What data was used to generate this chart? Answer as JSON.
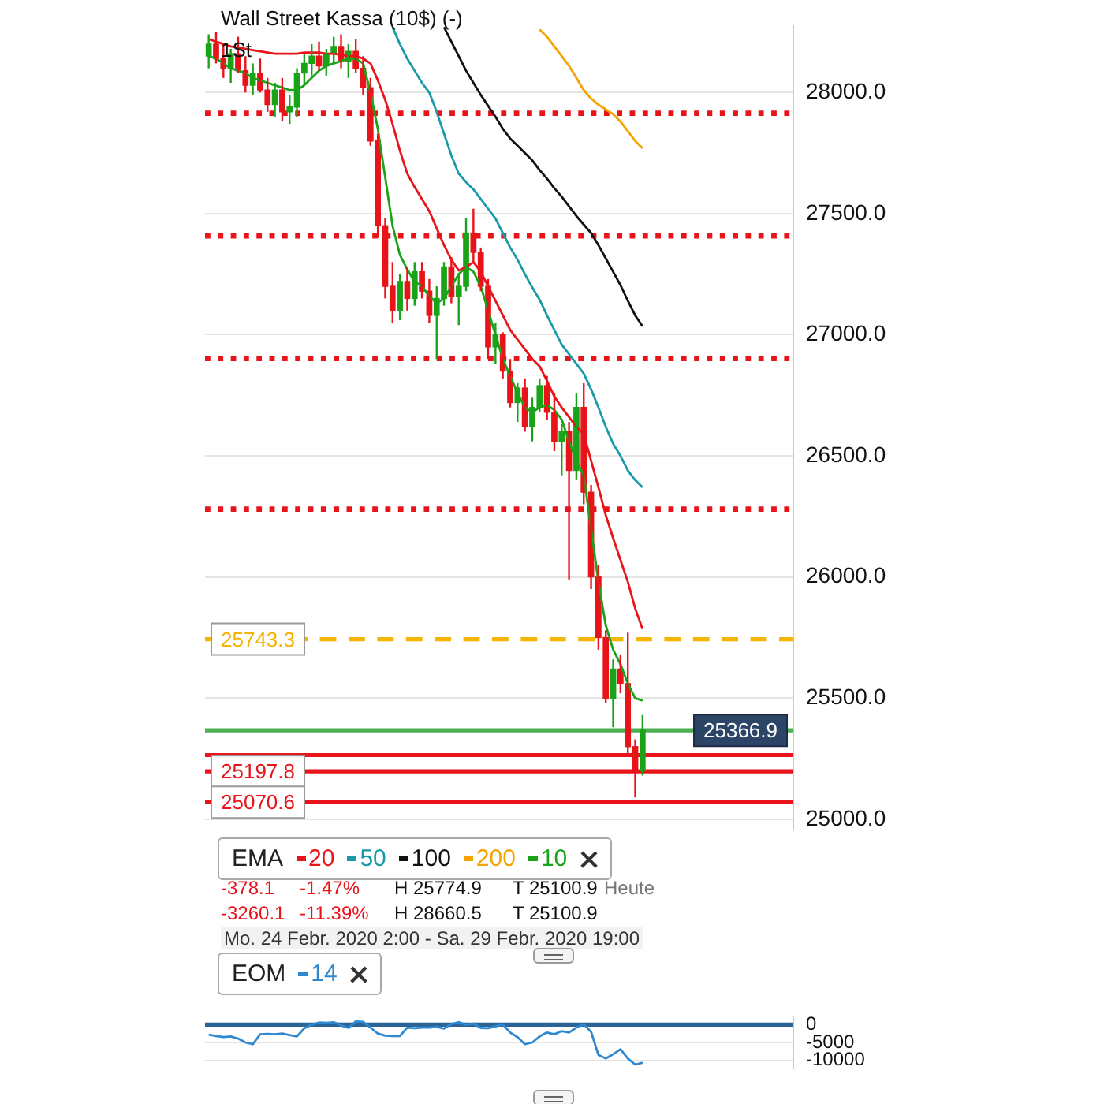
{
  "chart_data": [
    {
      "type": "candlestick",
      "title": "Wall Street Kassa (10$) (-)",
      "subtitle": "1St",
      "legend_title": "EMA",
      "legend": "bottom left",
      "grid": "y",
      "tick_labels": "y",
      "marker": "none",
      "categories": [
        null,
        null,
        null,
        null,
        null,
        null,
        null,
        null,
        null,
        null,
        null,
        null,
        null,
        null,
        null,
        null,
        null,
        null,
        null,
        null,
        null,
        null,
        null,
        null,
        null,
        null,
        null,
        null,
        null,
        null,
        null,
        null,
        null,
        null,
        null,
        null,
        null,
        null,
        null,
        null,
        null,
        null,
        null,
        null,
        null,
        null,
        null,
        null,
        null,
        null,
        null,
        null,
        null,
        null,
        null,
        null,
        null,
        null,
        null,
        null,
        null,
        null,
        null,
        null,
        null,
        null,
        null,
        null,
        null,
        null,
        null,
        null,
        null,
        null,
        null,
        null,
        null,
        null,
        null,
        null
      ],
      "ohlc": [
        [
          28150,
          28240,
          28100,
          28200
        ],
        [
          28200,
          28250,
          28120,
          28140
        ],
        [
          28140,
          28200,
          28060,
          28100
        ],
        [
          28100,
          28180,
          28040,
          28160
        ],
        [
          28160,
          28230,
          28080,
          28090
        ],
        [
          28090,
          28150,
          28000,
          28030
        ],
        [
          28030,
          28120,
          27990,
          28080
        ],
        [
          28080,
          28140,
          28000,
          28010
        ],
        [
          28010,
          28060,
          27920,
          27950
        ],
        [
          27950,
          28040,
          27900,
          28010
        ],
        [
          28010,
          28060,
          27880,
          27920
        ],
        [
          27920,
          27990,
          27870,
          27940
        ],
        [
          27940,
          28100,
          27900,
          28080
        ],
        [
          28080,
          28160,
          28030,
          28120
        ],
        [
          28120,
          28200,
          28070,
          28150
        ],
        [
          28150,
          28210,
          28090,
          28110
        ],
        [
          28110,
          28180,
          28070,
          28160
        ],
        [
          28160,
          28230,
          28120,
          28190
        ],
        [
          28190,
          28240,
          28100,
          28130
        ],
        [
          28130,
          28200,
          28060,
          28170
        ],
        [
          28170,
          28220,
          28080,
          28100
        ],
        [
          28100,
          28150,
          27990,
          28020
        ],
        [
          28020,
          28060,
          27780,
          27800
        ],
        [
          27800,
          27830,
          27400,
          27450
        ],
        [
          27450,
          27480,
          27150,
          27200
        ],
        [
          27200,
          27300,
          27050,
          27100
        ],
        [
          27100,
          27250,
          27060,
          27220
        ],
        [
          27220,
          27280,
          27100,
          27150
        ],
        [
          27150,
          27300,
          27120,
          27260
        ],
        [
          27260,
          27300,
          27150,
          27180
        ],
        [
          27180,
          27230,
          27050,
          27080
        ],
        [
          27080,
          27200,
          26900,
          27150
        ],
        [
          27150,
          27300,
          27120,
          27280
        ],
        [
          27280,
          27320,
          27130,
          27160
        ],
        [
          27160,
          27250,
          27040,
          27200
        ],
        [
          27200,
          27480,
          27180,
          27420
        ],
        [
          27420,
          27520,
          27300,
          27340
        ],
        [
          27340,
          27360,
          27180,
          27200
        ],
        [
          27200,
          27230,
          26900,
          26950
        ],
        [
          26950,
          27050,
          26880,
          27000
        ],
        [
          27000,
          27010,
          26820,
          26850
        ],
        [
          26850,
          26900,
          26700,
          26720
        ],
        [
          26720,
          26800,
          26640,
          26780
        ],
        [
          26780,
          26820,
          26600,
          26620
        ],
        [
          26620,
          26740,
          26560,
          26700
        ],
        [
          26700,
          26820,
          26680,
          26790
        ],
        [
          26790,
          26830,
          26650,
          26680
        ],
        [
          26680,
          26760,
          26520,
          26560
        ],
        [
          26560,
          26630,
          26420,
          26600
        ],
        [
          26600,
          26640,
          25990,
          26440
        ],
        [
          26440,
          26760,
          26400,
          26700
        ],
        [
          26700,
          26800,
          26300,
          26350
        ],
        [
          26350,
          26380,
          25950,
          26000
        ],
        [
          26000,
          26050,
          25700,
          25750
        ],
        [
          25750,
          25780,
          25480,
          25500
        ],
        [
          25500,
          25660,
          25380,
          25620
        ],
        [
          25620,
          25680,
          25520,
          25560
        ],
        [
          25560,
          25770,
          25260,
          25300
        ],
        [
          25300,
          25330,
          25090,
          25200
        ],
        [
          25200,
          25430,
          25180,
          25366.9
        ],
        null,
        null,
        null,
        null,
        null,
        null,
        null,
        null,
        null,
        null,
        null,
        null,
        null,
        null,
        null,
        null,
        null,
        null,
        null,
        null
      ],
      "colors": [
        "#19a319",
        "#e8141a",
        "#e8141a",
        "#19a319",
        "#e8141a",
        "#e8141a",
        "#19a319",
        "#e8141a",
        "#e8141a",
        "#19a319",
        "#e8141a",
        "#19a319",
        "#19a319",
        "#19a319",
        "#19a319",
        "#e8141a",
        "#19a319",
        "#19a319",
        "#e8141a",
        "#19a319",
        "#e8141a",
        "#e8141a",
        "#e8141a",
        "#e8141a",
        "#e8141a",
        "#e8141a",
        "#19a319",
        "#e8141a",
        "#19a319",
        "#e8141a",
        "#e8141a",
        "#19a319",
        "#19a319",
        "#e8141a",
        "#19a319",
        "#19a319",
        "#e8141a",
        "#e8141a",
        "#e8141a",
        "#19a319",
        "#e8141a",
        "#e8141a",
        "#19a319",
        "#e8141a",
        "#19a319",
        "#19a319",
        "#e8141a",
        "#e8141a",
        "#19a319",
        "#e8141a",
        "#19a319",
        "#e8141a",
        "#e8141a",
        "#e8141a",
        "#e8141a",
        "#19a319",
        "#e8141a",
        "#e8141a",
        "#e8141a",
        "#19a319",
        null,
        null,
        null,
        null,
        null,
        null,
        null,
        null,
        null,
        null,
        null,
        null,
        null,
        null,
        null,
        null,
        null,
        null,
        null,
        null
      ],
      "series": [
        {
          "type": "line",
          "name": "20",
          "color": "#e8141a",
          "values": [
            28220,
            28210,
            28200,
            28190,
            28185,
            28180,
            28175,
            28170,
            28165,
            28160,
            28160,
            28160,
            28160,
            28165,
            28165,
            28165,
            28160,
            28160,
            28155,
            28150,
            28150,
            28140,
            28120,
            28050,
            27970,
            27870,
            27760,
            27665,
            27610,
            27560,
            27510,
            27440,
            27370,
            27310,
            27265,
            27280,
            27300,
            27260,
            27200,
            27140,
            27080,
            27020,
            26980,
            26940,
            26900,
            26870,
            26810,
            26745,
            26700,
            26660,
            26620,
            26590,
            26480,
            26370,
            26255,
            26160,
            26070,
            25980,
            25870,
            25785,
            null,
            null,
            null,
            null,
            null,
            null,
            null,
            null,
            null,
            null,
            null,
            null,
            null,
            null,
            null,
            null,
            null,
            null,
            null,
            null
          ]
        },
        {
          "type": "line",
          "name": "50",
          "color": "#1a9aa8",
          "values": [
            null,
            null,
            null,
            null,
            null,
            null,
            null,
            null,
            null,
            null,
            null,
            null,
            null,
            null,
            null,
            null,
            null,
            null,
            null,
            null,
            null,
            null,
            null,
            null,
            null,
            28270,
            28200,
            28140,
            28090,
            28040,
            28000,
            27920,
            27830,
            27740,
            27665,
            27630,
            27600,
            27560,
            27520,
            27480,
            27420,
            27360,
            27310,
            27250,
            27195,
            27145,
            27080,
            27020,
            26960,
            26920,
            26880,
            26840,
            26775,
            26700,
            26620,
            26550,
            26500,
            26440,
            26400,
            26370,
            null,
            null,
            null,
            null,
            null,
            null,
            null,
            null,
            null,
            null,
            null,
            null,
            null,
            null,
            null,
            null,
            null,
            null,
            null,
            null
          ]
        },
        {
          "type": "line",
          "name": "100",
          "color": "#111111",
          "values": [
            null,
            null,
            null,
            null,
            null,
            null,
            null,
            null,
            null,
            null,
            null,
            null,
            null,
            null,
            null,
            null,
            null,
            null,
            null,
            null,
            null,
            null,
            null,
            null,
            null,
            null,
            null,
            null,
            null,
            null,
            null,
            null,
            28270,
            28210,
            28150,
            28090,
            28040,
            27990,
            27945,
            27900,
            27850,
            27810,
            27780,
            27750,
            27720,
            27680,
            27645,
            27605,
            27570,
            27530,
            27490,
            27455,
            27420,
            27370,
            27315,
            27260,
            27205,
            27140,
            27080,
            27035,
            null,
            null,
            null,
            null,
            null,
            null,
            null,
            null,
            null,
            null,
            null,
            null,
            null,
            null,
            null,
            null,
            null,
            null,
            null,
            null
          ]
        },
        {
          "type": "line",
          "name": "200",
          "color": "#f5a300",
          "values": [
            null,
            null,
            null,
            null,
            null,
            null,
            null,
            null,
            null,
            null,
            null,
            null,
            null,
            null,
            null,
            null,
            null,
            null,
            null,
            null,
            null,
            null,
            null,
            null,
            null,
            null,
            null,
            null,
            null,
            null,
            null,
            null,
            null,
            null,
            null,
            null,
            null,
            null,
            null,
            null,
            null,
            null,
            null,
            null,
            null,
            28260,
            28230,
            28190,
            28150,
            28110,
            28060,
            28010,
            27975,
            27950,
            27930,
            27910,
            27880,
            27840,
            27800,
            27770,
            null,
            null,
            null,
            null,
            null,
            null,
            null,
            null,
            null,
            null,
            null,
            null,
            null,
            null,
            null,
            null,
            null,
            null,
            null,
            null
          ]
        },
        {
          "type": "line",
          "name": "10",
          "color": "#19a319",
          "values": [
            28150,
            28140,
            28120,
            28100,
            28090,
            28080,
            28060,
            28050,
            28040,
            28030,
            28020,
            28010,
            28010,
            28030,
            28060,
            28090,
            28110,
            28120,
            28130,
            28140,
            28140,
            28120,
            28000,
            27850,
            27650,
            27450,
            27330,
            27270,
            27220,
            27200,
            27160,
            27130,
            27150,
            27200,
            27250,
            27280,
            27260,
            27200,
            27100,
            27000,
            26900,
            26830,
            26760,
            26700,
            26680,
            26700,
            26710,
            26690,
            26650,
            26560,
            26480,
            26420,
            26200,
            25980,
            25800,
            25700,
            25640,
            25560,
            25500,
            25490,
            null,
            null,
            null,
            null,
            null,
            null,
            null,
            null,
            null,
            null,
            null,
            null,
            null,
            null,
            null,
            null,
            null,
            null,
            null,
            null
          ]
        }
      ],
      "ylim": [
        24960,
        28275
      ],
      "yticks": [
        {
          "value": 25000,
          "label": "25000.0"
        },
        {
          "value": 25500,
          "label": "25500.0"
        },
        {
          "value": 26000,
          "label": "26000.0"
        },
        {
          "value": 26500,
          "label": "26500.0"
        },
        {
          "value": 27000,
          "label": "27000.0"
        },
        {
          "value": 27500,
          "label": "27500.0"
        },
        {
          "value": 28000,
          "label": "28000.0"
        }
      ],
      "ref_lines": [
        {
          "axis": "y",
          "value": 25366.9,
          "label": "25366.9",
          "color": "#4caf50",
          "line_style": "solid"
        },
        {
          "axis": "y",
          "value": 27914,
          "color": "#e8141a",
          "line_style": "dotted"
        },
        {
          "axis": "y",
          "value": 27408,
          "color": "#e8141a",
          "line_style": "dotted"
        },
        {
          "axis": "y",
          "value": 26902,
          "color": "#e8141a",
          "line_style": "dotted"
        },
        {
          "axis": "y",
          "value": 26280,
          "color": "#e8141a",
          "line_style": "dotted"
        },
        {
          "axis": "y",
          "value": 25743.3,
          "label": "25743.3",
          "color": "#f5b400",
          "line_style": "dashed"
        },
        {
          "axis": "y",
          "value": 25265,
          "color": "#e8141a",
          "line_style": "solid"
        },
        {
          "axis": "y",
          "value": 25197.8,
          "label": "25197.8",
          "color": "#e8141a",
          "line_style": "solid"
        },
        {
          "axis": "y",
          "value": 25070.6,
          "label": "25070.6",
          "color": "#e8141a",
          "line_style": "solid"
        }
      ],
      "annotations": [
        "-378.1",
        "-1.47%",
        "H 25774.9",
        "T 25100.9",
        "Heute",
        "-3260.1",
        "-11.39%",
        "H 28660.5",
        "T 25100.9",
        "Mo. 24 Febr. 2020 2:00 - Sa. 29 Febr. 2020 19:00"
      ]
    },
    {
      "type": "line",
      "legend_title": "EOM",
      "legend": "top left",
      "grid": "y",
      "tick_labels": "y",
      "marker": "none",
      "categories": [
        null,
        null,
        null,
        null,
        null,
        null,
        null,
        null,
        null,
        null,
        null,
        null,
        null,
        null,
        null,
        null,
        null,
        null,
        null,
        null,
        null,
        null,
        null,
        null,
        null,
        null,
        null,
        null,
        null,
        null,
        null,
        null,
        null,
        null,
        null,
        null,
        null,
        null,
        null,
        null,
        null,
        null,
        null,
        null,
        null,
        null,
        null,
        null,
        null,
        null,
        null,
        null,
        null,
        null,
        null,
        null,
        null,
        null,
        null,
        null,
        null,
        null,
        null,
        null,
        null,
        null,
        null,
        null,
        null,
        null,
        null,
        null,
        null,
        null,
        null,
        null,
        null,
        null,
        null,
        null
      ],
      "series": [
        {
          "type": "line",
          "name": "14",
          "color": "#2f88d0",
          "values": [
            -2800,
            -3200,
            -3500,
            -3300,
            -3900,
            -5000,
            -5500,
            -2700,
            -2600,
            -2700,
            -2500,
            -2900,
            -3300,
            -1000,
            0,
            600,
            500,
            700,
            -200,
            -900,
            900,
            800,
            -800,
            -2500,
            -3100,
            -3200,
            -3200,
            -800,
            -1000,
            -800,
            -800,
            -600,
            -1100,
            200,
            700,
            0,
            300,
            -900,
            -1000,
            -500,
            100,
            -2200,
            -3500,
            -5500,
            -5000,
            -3300,
            -2200,
            -2700,
            -1800,
            -2200,
            -800,
            100,
            -2000,
            -8500,
            -9500,
            -8300,
            -6900,
            -9500,
            -11200,
            -10700,
            null,
            null,
            null,
            null,
            null,
            null,
            null,
            null,
            null,
            null,
            null,
            null,
            null,
            null,
            null,
            null,
            null,
            null,
            null,
            null
          ]
        }
      ],
      "ylim": [
        -12000,
        2000
      ],
      "yticks": [
        -10000,
        -5000,
        0
      ],
      "ref_lines": [
        {
          "axis": "y",
          "value": 0,
          "color": "#2a6496",
          "line_style": "solid"
        }
      ]
    }
  ]
}
